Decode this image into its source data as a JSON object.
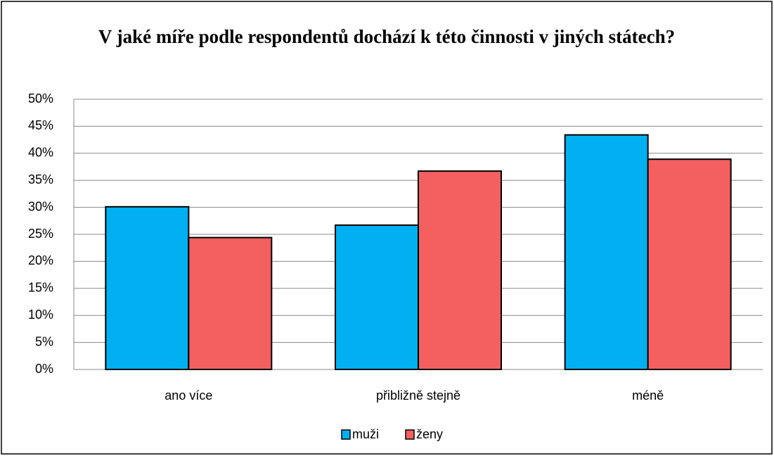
{
  "chart_data": {
    "type": "bar",
    "title": "V jaké míře podle respondentů dochází k této činnosti v jiných státech?",
    "categories": [
      "ano více",
      "přibližně stejně",
      "méně"
    ],
    "series": [
      {
        "name": "muži",
        "color": "#00b0f0",
        "values": [
          30.1,
          26.7,
          43.4
        ]
      },
      {
        "name": "ženy",
        "color": "#f46060",
        "values": [
          24.4,
          36.7,
          38.9
        ]
      }
    ],
    "ylim": [
      0,
      50
    ],
    "yticks": [
      {
        "value": 0,
        "label": "0%"
      },
      {
        "value": 5,
        "label": "5%"
      },
      {
        "value": 10,
        "label": "10%"
      },
      {
        "value": 15,
        "label": "15%"
      },
      {
        "value": 20,
        "label": "20%"
      },
      {
        "value": 25,
        "label": "25%"
      },
      {
        "value": 30,
        "label": "30%"
      },
      {
        "value": 35,
        "label": "35%"
      },
      {
        "value": 40,
        "label": "40%"
      },
      {
        "value": 45,
        "label": "45%"
      },
      {
        "value": 50,
        "label": "50%"
      }
    ],
    "grid": true,
    "legend": "bottom"
  }
}
